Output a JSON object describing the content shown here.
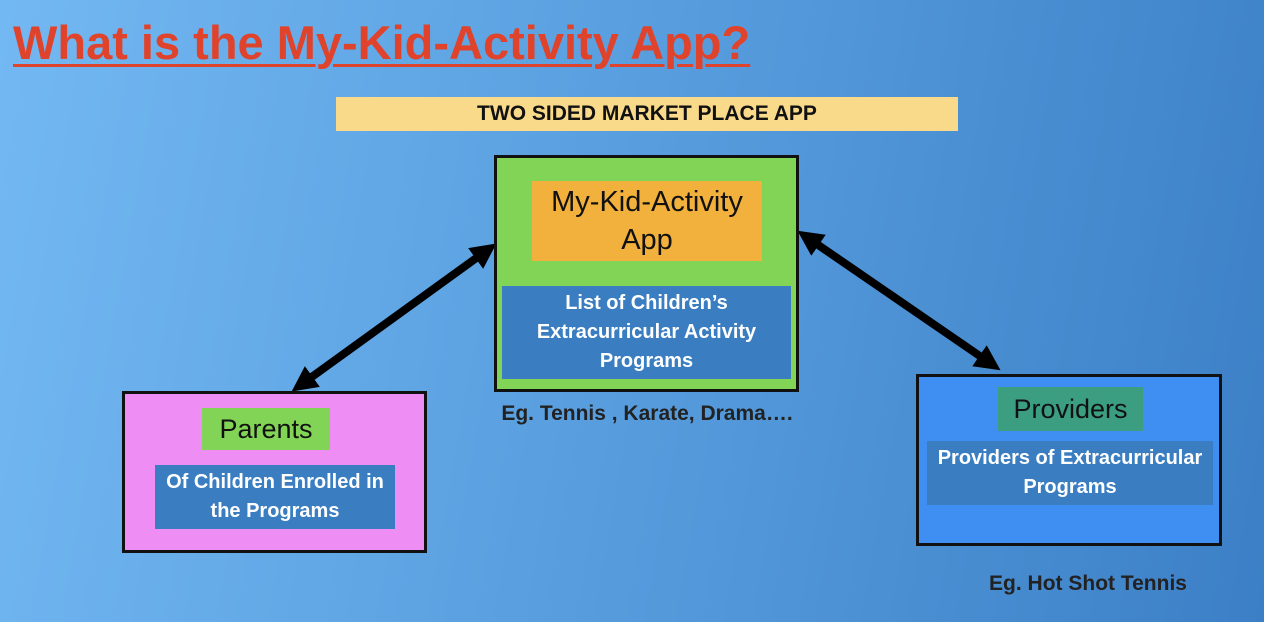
{
  "title": "What is the My-Kid-Activity App?",
  "banner": "TWO SIDED MARKET PLACE APP",
  "center": {
    "title": "My-Kid-Activity App",
    "description": "List of Children’s Extracurricular Activity Programs",
    "caption": "Eg. Tennis , Karate, Drama…."
  },
  "parents": {
    "title": "Parents",
    "description": "Of Children Enrolled in the Programs"
  },
  "providers": {
    "title": "Providers",
    "description": "Providers of Extracurricular Programs",
    "caption": "Eg. Hot Shot Tennis"
  },
  "colors": {
    "title": "#e0432c",
    "banner": "#f9d98a",
    "center_box": "#82d456",
    "app_label": "#f2b13c",
    "description_fill": "#3a7ec1",
    "parents_box": "#ee8df4",
    "providers_box": "#3f8ff2",
    "providers_label": "#3b9e80",
    "arrow": "#000000"
  }
}
